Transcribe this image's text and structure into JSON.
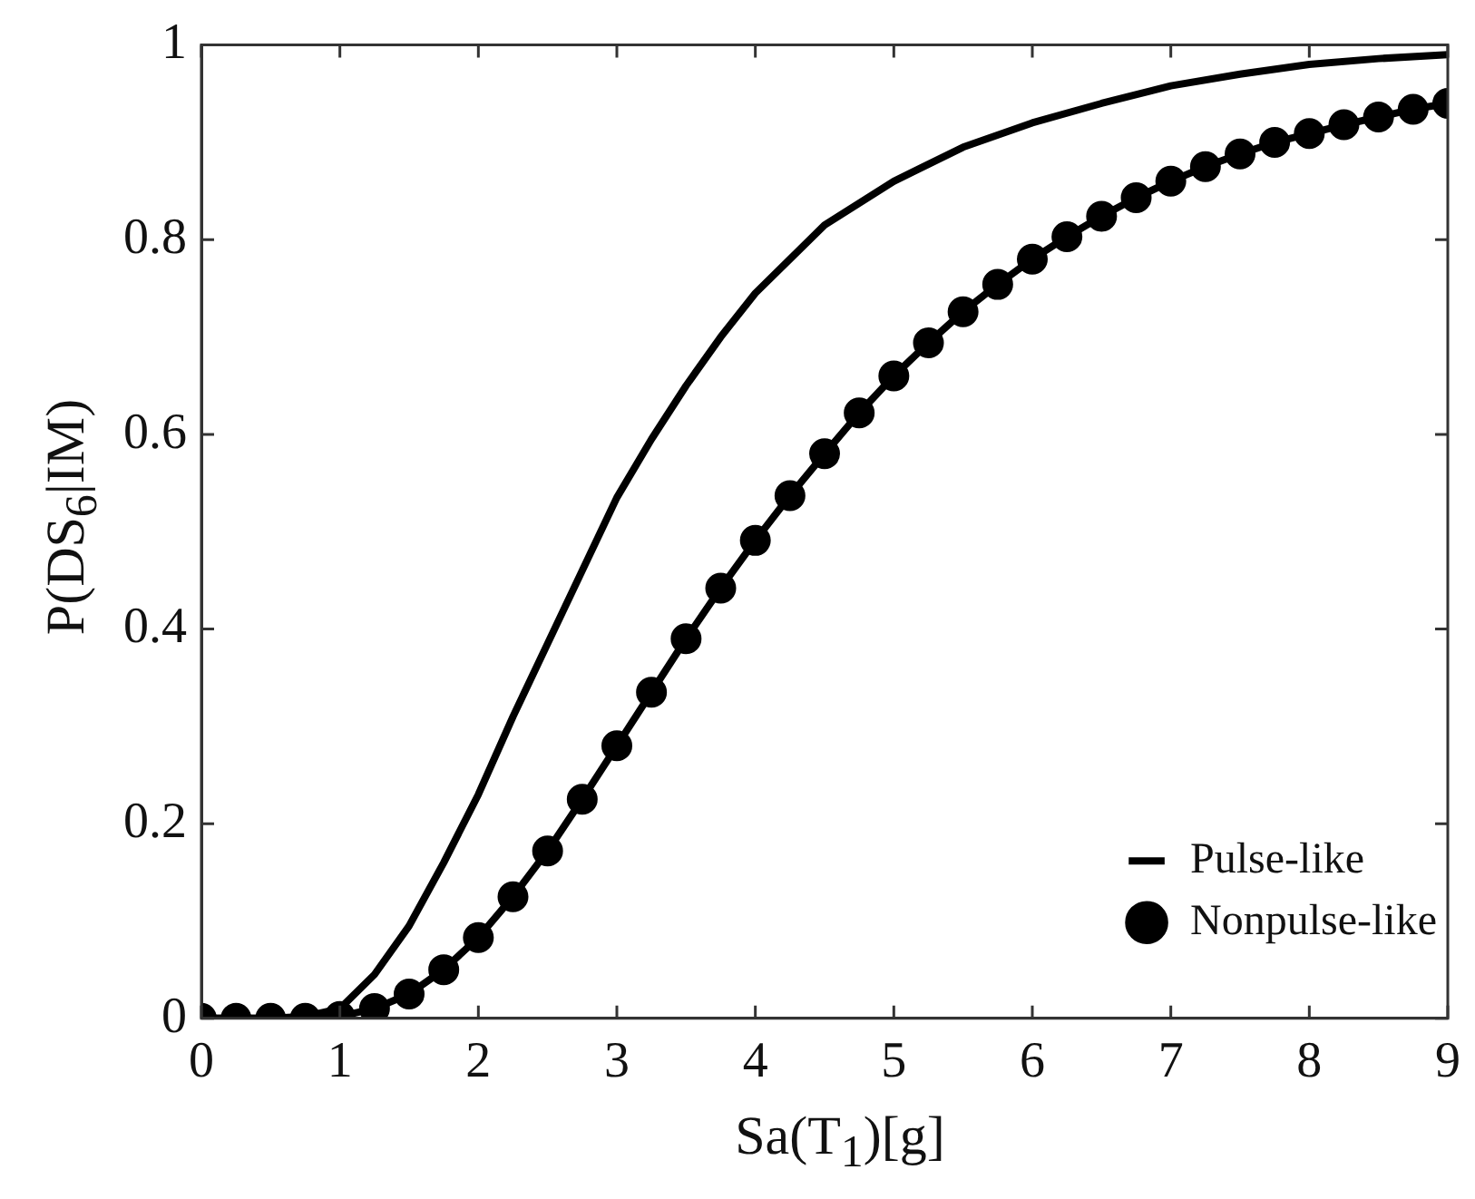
{
  "chart_data": {
    "type": "line",
    "xlabel": "Sa(T$_{1}$)[g]",
    "ylabel": "P(DS$_{6}$|IM)",
    "xlim": [
      0,
      9
    ],
    "xticks": [
      0,
      1,
      2,
      3,
      4,
      5,
      6,
      7,
      8,
      9
    ],
    "ylim": [
      0,
      1
    ],
    "yticks": [
      0,
      0.2,
      0.4,
      0.6,
      0.8,
      1
    ],
    "grid": false,
    "legend": "bottom right",
    "series": [
      {
        "name": "Pulse-like",
        "color": "#000000",
        "marker": "none",
        "x": [
          0,
          0.25,
          0.5,
          0.75,
          1,
          1.25,
          1.5,
          1.75,
          2,
          2.25,
          2.5,
          2.75,
          3,
          3.25,
          3.5,
          3.75,
          4,
          4.5,
          5,
          5.5,
          6,
          6.5,
          7,
          7.5,
          8,
          8.5,
          9
        ],
        "values": [
          0,
          0,
          0,
          0.002,
          0.01,
          0.045,
          0.095,
          0.16,
          0.23,
          0.31,
          0.385,
          0.46,
          0.535,
          0.595,
          0.65,
          0.7,
          0.745,
          0.815,
          0.86,
          0.895,
          0.92,
          0.94,
          0.958,
          0.97,
          0.98,
          0.986,
          0.99
        ]
      },
      {
        "name": "Nonpulse-like",
        "color": "#000000",
        "marker": "circle",
        "x": [
          0,
          0.25,
          0.5,
          0.75,
          1,
          1.25,
          1.5,
          1.75,
          2,
          2.25,
          2.5,
          2.75,
          3,
          3.25,
          3.5,
          3.75,
          4,
          4.25,
          4.5,
          4.75,
          5,
          5.25,
          5.5,
          5.75,
          6,
          6.25,
          6.5,
          6.75,
          7,
          7.25,
          7.5,
          7.75,
          8,
          8.25,
          8.5,
          8.75,
          9
        ],
        "values": [
          0,
          0,
          0,
          0,
          0.002,
          0.01,
          0.025,
          0.05,
          0.083,
          0.125,
          0.172,
          0.225,
          0.28,
          0.335,
          0.39,
          0.442,
          0.491,
          0.537,
          0.58,
          0.622,
          0.66,
          0.694,
          0.726,
          0.754,
          0.78,
          0.803,
          0.824,
          0.843,
          0.86,
          0.875,
          0.888,
          0.9,
          0.909,
          0.918,
          0.926,
          0.934,
          0.94
        ]
      }
    ]
  }
}
